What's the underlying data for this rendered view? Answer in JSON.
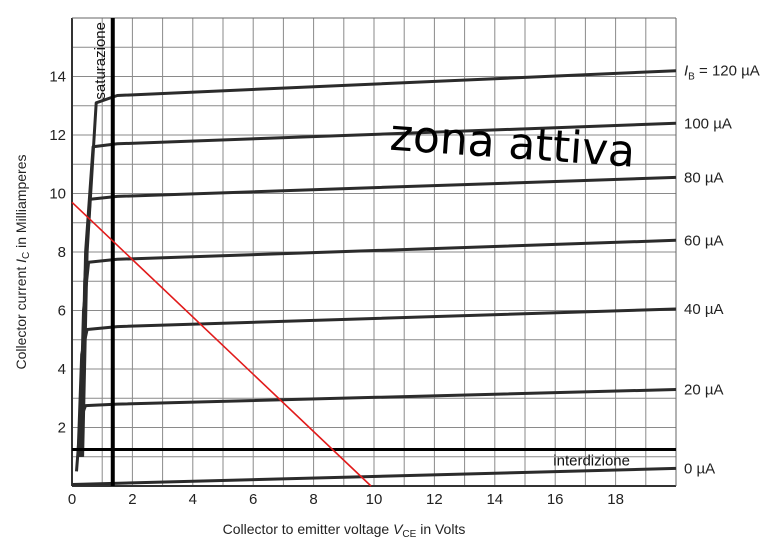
{
  "chart_data": {
    "type": "line",
    "xlabel": "Collector to emitter voltage V_CE in Volts",
    "xlabel_parts": {
      "pre": "Collector to emitter voltage ",
      "var": "V",
      "sub": "CE",
      "post": " in Volts"
    },
    "ylabel": "Collector current I_C in Milliamperes",
    "ylabel_parts": {
      "pre": "Collector current ",
      "var": "I",
      "sub": "C",
      "post": " in Milliamperes"
    },
    "xlim": [
      0,
      20
    ],
    "ylim": [
      0,
      16
    ],
    "x_ticks": [
      0,
      2,
      4,
      6,
      8,
      10,
      12,
      14,
      16,
      18
    ],
    "y_ticks": [
      2,
      4,
      6,
      8,
      10,
      12,
      14
    ],
    "grid": true,
    "series": [
      {
        "name": "I_B = 120 µA",
        "label_parts": {
          "var": "I",
          "sub": "B",
          "text": " = 120 µA"
        },
        "points": [
          [
            0.35,
            1.0
          ],
          [
            0.5,
            8.0
          ],
          [
            0.8,
            13.1
          ],
          [
            1.5,
            13.35
          ],
          [
            20,
            14.2
          ]
        ]
      },
      {
        "name": "100 µA",
        "label": "100 µA",
        "points": [
          [
            0.3,
            1.0
          ],
          [
            0.45,
            8.0
          ],
          [
            0.7,
            11.6
          ],
          [
            1.5,
            11.7
          ],
          [
            20,
            12.4
          ]
        ]
      },
      {
        "name": "80 µA",
        "label": "80 µA",
        "points": [
          [
            0.3,
            1.0
          ],
          [
            0.42,
            7.0
          ],
          [
            0.6,
            9.8
          ],
          [
            1.5,
            9.9
          ],
          [
            20,
            10.55
          ]
        ]
      },
      {
        "name": "60 µA",
        "label": "60 µA",
        "points": [
          [
            0.25,
            1.0
          ],
          [
            0.38,
            6.0
          ],
          [
            0.55,
            7.65
          ],
          [
            1.5,
            7.75
          ],
          [
            20,
            8.4
          ]
        ]
      },
      {
        "name": "40 µA",
        "label": "40 µA",
        "points": [
          [
            0.2,
            1.0
          ],
          [
            0.32,
            4.5
          ],
          [
            0.5,
            5.35
          ],
          [
            1.5,
            5.45
          ],
          [
            20,
            6.05
          ]
        ]
      },
      {
        "name": "20 µA",
        "label": "20 µA",
        "points": [
          [
            0.15,
            0.5
          ],
          [
            0.28,
            2.3
          ],
          [
            0.45,
            2.75
          ],
          [
            1.5,
            2.8
          ],
          [
            20,
            3.3
          ]
        ]
      },
      {
        "name": "0 µA",
        "label": "0 µA",
        "points": [
          [
            0,
            0.05
          ],
          [
            20,
            0.6
          ]
        ]
      }
    ],
    "load_line": {
      "points": [
        [
          0,
          9.7
        ],
        [
          9.9,
          0
        ]
      ],
      "color": "#e11a1a"
    },
    "saturation_line": {
      "x": 1.35,
      "label": "saturazione"
    },
    "cutoff_line": {
      "y": 1.25,
      "label": "interdizione"
    },
    "active_region_label": "zona attiva"
  }
}
